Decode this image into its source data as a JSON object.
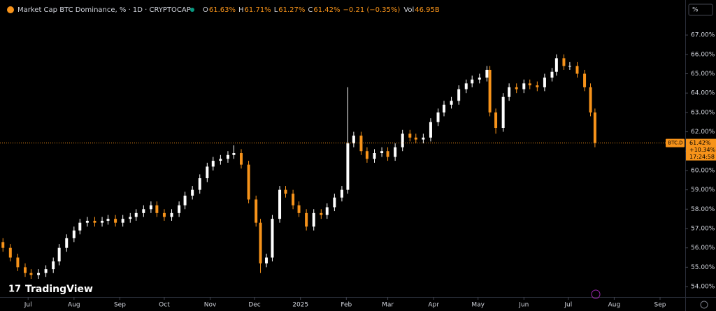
{
  "chart_data": {
    "type": "candlestick",
    "title": "Market Cap BTC Dominance, % · 1D · CRYPTOCAP",
    "ohlc_legend": [
      {
        "label": "O",
        "value": "61.63%"
      },
      {
        "label": "H",
        "value": "61.71%"
      },
      {
        "label": "L",
        "value": "61.27%"
      },
      {
        "label": "C",
        "value": "61.42%"
      }
    ],
    "change": "−0.21 (−0.35%)",
    "volume": {
      "label": "Vol",
      "value": "46.95B"
    },
    "axis_unit": "%",
    "brand": "TradingView",
    "up_color": "#ffffff",
    "down_color": "#f7931a",
    "last_price": {
      "symbol": "BTC.D",
      "value": 61.42,
      "label": "61.42%",
      "change": "+10.34%",
      "countdown": "17:24:58"
    },
    "x": [
      -17,
      -12,
      -7,
      -2,
      2,
      7,
      12,
      17,
      21,
      26,
      31,
      35,
      40,
      45,
      50,
      54,
      59,
      64,
      69,
      73,
      78,
      83,
      87,
      92,
      97,
      102,
      106,
      111,
      116,
      121,
      125,
      130,
      135,
      139,
      144,
      149,
      154,
      157,
      161,
      165,
      170,
      174,
      179,
      183,
      188,
      193,
      198,
      202,
      207,
      212,
      216,
      220,
      225,
      229,
      234,
      239,
      243,
      248,
      253,
      258,
      262,
      267,
      272,
      277,
      281,
      286,
      291,
      296,
      300,
      305,
      310,
      312,
      316,
      321,
      325,
      330,
      335,
      339,
      344,
      349,
      354,
      357,
      362,
      366,
      371,
      376,
      380,
      383
    ],
    "open": [
      56.3,
      56.0,
      55.5,
      55.0,
      54.7,
      54.6,
      54.7,
      54.9,
      55.3,
      56.0,
      56.5,
      56.9,
      57.3,
      57.4,
      57.3,
      57.4,
      57.5,
      57.3,
      57.5,
      57.6,
      57.8,
      58.0,
      58.2,
      57.8,
      57.6,
      57.8,
      58.2,
      58.7,
      59.0,
      59.6,
      60.2,
      60.5,
      60.6,
      60.8,
      60.9,
      60.3,
      58.5,
      57.3,
      55.2,
      55.5,
      57.5,
      59.0,
      58.8,
      58.2,
      57.8,
      57.1,
      57.8,
      57.7,
      58.1,
      58.6,
      59.0,
      61.4,
      61.8,
      61.0,
      60.6,
      60.9,
      61.0,
      60.7,
      61.2,
      61.9,
      61.7,
      61.6,
      61.7,
      62.5,
      63.0,
      63.4,
      63.6,
      64.2,
      64.5,
      64.7,
      64.8,
      65.2,
      63.0,
      62.2,
      63.8,
      64.3,
      64.2,
      64.5,
      64.4,
      64.3,
      64.8,
      65.1,
      65.8,
      65.4,
      65.4,
      65.0,
      64.3,
      63.0
    ],
    "high": [
      56.5,
      56.2,
      55.7,
      55.2,
      54.9,
      54.9,
      55.1,
      55.5,
      56.2,
      56.7,
      57.1,
      57.5,
      57.6,
      57.6,
      57.6,
      57.7,
      57.7,
      57.7,
      57.8,
      58.0,
      58.2,
      58.4,
      58.4,
      58.0,
      58.0,
      58.4,
      58.9,
      59.2,
      59.8,
      60.4,
      60.7,
      60.8,
      61.0,
      61.3,
      61.1,
      60.5,
      58.7,
      57.5,
      55.7,
      57.7,
      59.2,
      59.2,
      59.0,
      58.4,
      58.0,
      58.0,
      58.0,
      58.3,
      58.8,
      59.2,
      64.3,
      62.0,
      62.0,
      61.2,
      61.1,
      61.2,
      61.2,
      61.4,
      62.1,
      62.1,
      61.9,
      61.9,
      62.7,
      63.2,
      63.6,
      63.8,
      64.4,
      64.7,
      64.9,
      65.0,
      65.4,
      65.4,
      63.2,
      64.0,
      64.5,
      64.5,
      64.7,
      64.7,
      64.6,
      65.0,
      65.3,
      66.0,
      66.0,
      65.6,
      65.6,
      65.2,
      64.5,
      63.2
    ],
    "low": [
      55.8,
      55.3,
      54.8,
      54.5,
      54.4,
      54.4,
      54.5,
      54.7,
      55.1,
      55.8,
      56.3,
      56.7,
      57.1,
      57.1,
      57.1,
      57.2,
      57.1,
      57.1,
      57.3,
      57.4,
      57.6,
      57.8,
      57.6,
      57.4,
      57.4,
      57.6,
      58.0,
      58.5,
      58.8,
      59.4,
      60.0,
      60.3,
      60.4,
      60.6,
      60.1,
      58.3,
      57.1,
      54.7,
      55.0,
      55.3,
      57.3,
      58.6,
      58.0,
      57.6,
      56.9,
      56.9,
      57.5,
      57.5,
      57.9,
      58.4,
      58.8,
      61.2,
      60.8,
      60.4,
      60.4,
      60.7,
      60.5,
      60.5,
      61.0,
      61.5,
      61.4,
      61.4,
      61.5,
      62.3,
      62.8,
      63.2,
      63.4,
      64.0,
      64.3,
      64.5,
      64.6,
      62.8,
      61.9,
      62.0,
      63.6,
      64.0,
      64.0,
      64.2,
      64.1,
      64.1,
      64.6,
      64.9,
      65.2,
      65.2,
      64.8,
      64.1,
      62.8,
      61.2
    ],
    "close": [
      56.0,
      55.5,
      55.0,
      54.7,
      54.6,
      54.7,
      54.9,
      55.3,
      56.0,
      56.5,
      56.9,
      57.3,
      57.4,
      57.3,
      57.4,
      57.5,
      57.3,
      57.5,
      57.6,
      57.8,
      58.0,
      58.2,
      57.8,
      57.6,
      57.8,
      58.2,
      58.7,
      59.0,
      59.6,
      60.2,
      60.5,
      60.6,
      60.8,
      60.9,
      60.3,
      58.5,
      57.3,
      55.2,
      55.5,
      57.5,
      59.0,
      58.8,
      58.2,
      57.8,
      57.1,
      57.8,
      57.7,
      58.1,
      58.6,
      59.0,
      61.4,
      61.8,
      61.0,
      60.6,
      60.9,
      61.0,
      60.7,
      61.2,
      61.9,
      61.7,
      61.6,
      61.7,
      62.5,
      63.0,
      63.4,
      63.6,
      64.2,
      64.5,
      64.7,
      64.8,
      65.2,
      63.0,
      62.2,
      63.8,
      64.3,
      64.2,
      64.5,
      64.4,
      64.3,
      64.8,
      65.1,
      65.8,
      65.4,
      65.4,
      65.0,
      64.3,
      63.0,
      61.42
    ],
    "xlim": [
      -19,
      444
    ],
    "xticks": [
      {
        "value": 0,
        "label": "Jul"
      },
      {
        "value": 31,
        "label": "Aug"
      },
      {
        "value": 62,
        "label": "Sep"
      },
      {
        "value": 92,
        "label": "Oct"
      },
      {
        "value": 123,
        "label": "Nov"
      },
      {
        "value": 153,
        "label": "Dec"
      },
      {
        "value": 184,
        "label": "2025"
      },
      {
        "value": 215,
        "label": "Feb"
      },
      {
        "value": 243,
        "label": "Mar"
      },
      {
        "value": 274,
        "label": "Apr"
      },
      {
        "value": 304,
        "label": "May"
      },
      {
        "value": 335,
        "label": "Jun"
      },
      {
        "value": 365,
        "label": "Jul"
      },
      {
        "value": 396,
        "label": "Aug"
      },
      {
        "value": 427,
        "label": "Sep"
      }
    ],
    "ylim": [
      53.46,
      68.81
    ],
    "yticks": [
      {
        "value": 54,
        "label": "54.00%"
      },
      {
        "value": 55,
        "label": "55.00%"
      },
      {
        "value": 56,
        "label": "56.00%"
      },
      {
        "value": 57,
        "label": "57.00%"
      },
      {
        "value": 58,
        "label": "58.00%"
      },
      {
        "value": 59,
        "label": "59.00%"
      },
      {
        "value": 60,
        "label": "60.00%"
      },
      {
        "value": 61,
        "label": "61.00%"
      },
      {
        "value": 62,
        "label": "62.00%"
      },
      {
        "value": 63,
        "label": "63.00%"
      },
      {
        "value": 64,
        "label": "64.00%"
      },
      {
        "value": 65,
        "label": "65.00%"
      },
      {
        "value": 66,
        "label": "66.00%"
      },
      {
        "value": 67,
        "label": "67.00%"
      }
    ]
  }
}
